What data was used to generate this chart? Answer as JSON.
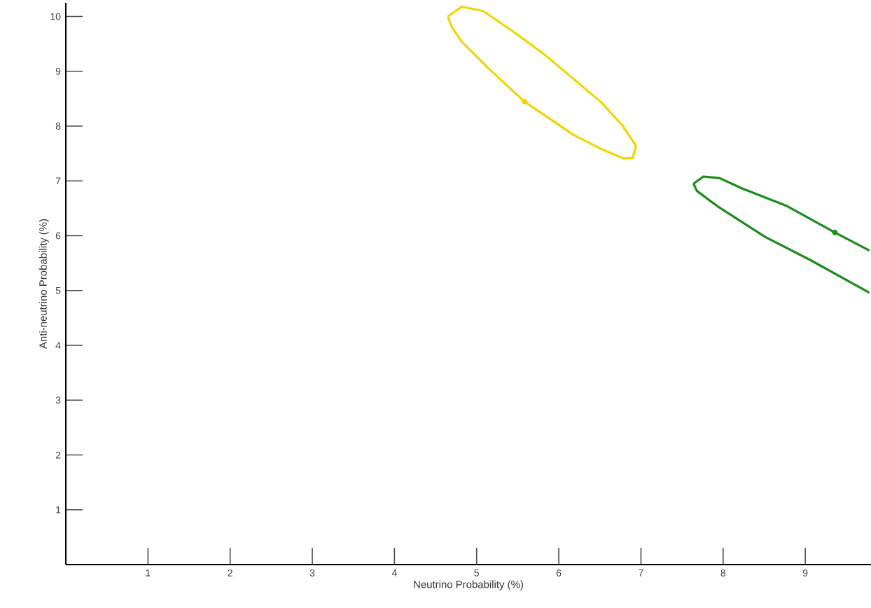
{
  "chart_data": {
    "type": "line",
    "xlabel": "Neutrino Probability (%)",
    "ylabel": "Anti-neutrino Probability (%)",
    "xlim": [
      0,
      9.8
    ],
    "ylim": [
      0,
      10.25
    ],
    "xticks": [
      1,
      2,
      3,
      4,
      5,
      6,
      7,
      8,
      9
    ],
    "yticks": [
      1,
      2,
      3,
      4,
      5,
      6,
      7,
      8,
      9,
      10
    ],
    "series": [
      {
        "color": "#f2d600",
        "x": [
          4.65,
          4.82,
          5.08,
          5.45,
          5.84,
          6.18,
          6.52,
          6.77,
          6.94
        ],
        "values": [
          10.0,
          10.18,
          10.1,
          9.72,
          9.29,
          8.86,
          8.43,
          8.02,
          7.64
        ]
      },
      {
        "color": "#f2d600",
        "x": [
          4.65,
          4.7,
          4.82,
          5.16,
          5.58,
          6.18,
          6.52,
          6.79,
          6.9,
          6.94
        ],
        "values": [
          10.0,
          9.8,
          9.54,
          9.03,
          8.45,
          7.84,
          7.58,
          7.41,
          7.42,
          7.64
        ]
      },
      {
        "type": "scatter",
        "marker": "circle",
        "color": "#f2d600",
        "x": [
          5.58
        ],
        "values": [
          8.45
        ]
      },
      {
        "color": "#1a8c1a",
        "x": [
          7.64,
          7.76,
          7.96,
          8.22,
          8.78,
          9.36,
          9.78
        ],
        "values": [
          6.95,
          7.08,
          7.05,
          6.87,
          6.54,
          6.06,
          5.73
        ]
      },
      {
        "color": "#1a8c1a",
        "x": [
          7.64,
          7.68,
          7.93,
          8.51,
          9.07,
          9.78
        ],
        "values": [
          6.95,
          6.82,
          6.54,
          5.98,
          5.55,
          4.96
        ]
      },
      {
        "type": "scatter",
        "marker": "circle",
        "color": "#1a8c1a",
        "x": [
          9.36
        ],
        "values": [
          6.06
        ]
      }
    ]
  }
}
